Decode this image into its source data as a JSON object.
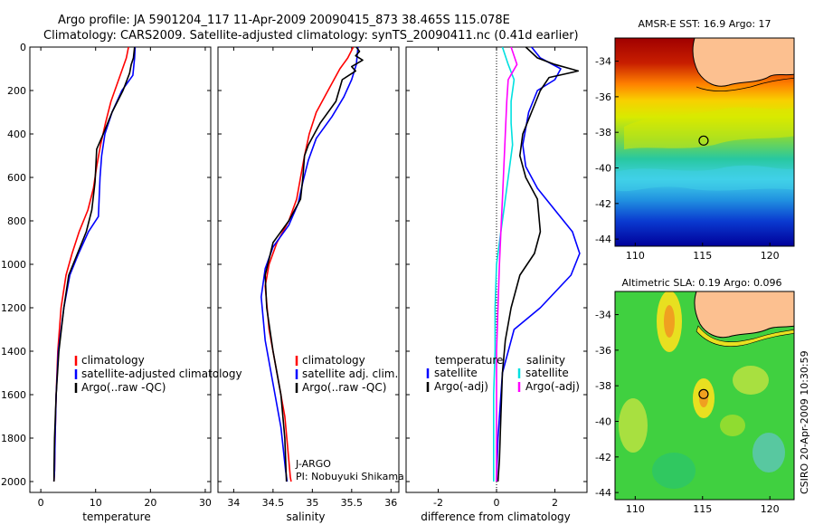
{
  "header": {
    "line1": "Argo profile: JA 5901204_117 11-Apr-2009 20090415_873 38.465S 115.078E",
    "line2": "Climatology: CARS2009. Satellite-adjusted climatology: synTS_20090411.nc (0.41d earlier)"
  },
  "side_stamp": "CSIRO 20-Apr-2009 10:30:59",
  "chart_data": [
    {
      "type": "line",
      "xlabel": "temperature",
      "ylabel": "",
      "xlim": [
        -2,
        31
      ],
      "ylim": [
        2050,
        0
      ],
      "xticks": [
        0,
        10,
        20,
        30
      ],
      "yticks": [
        0,
        200,
        400,
        600,
        800,
        1000,
        1200,
        1400,
        1600,
        1800,
        2000
      ],
      "legend": {
        "placement": "bottom-right",
        "entries": [
          "climatology",
          "satellite-adjusted climatology",
          "Argo(..raw -QC)"
        ]
      },
      "series": [
        {
          "name": "climatology",
          "color": "#ff0000",
          "x": [
            16.0,
            15.6,
            14.2,
            12.8,
            11.8,
            10.9,
            10.2,
            9.6,
            8.6,
            7.0,
            5.7,
            4.6,
            3.7,
            3.1,
            2.8,
            2.6,
            2.5,
            2.4
          ],
          "y": [
            0,
            50,
            150,
            250,
            350,
            450,
            550,
            650,
            750,
            850,
            950,
            1050,
            1200,
            1400,
            1600,
            1800,
            1950,
            2000
          ]
        },
        {
          "name": "satellite-adjusted climatology",
          "color": "#0000ff",
          "x": [
            17.2,
            17.1,
            16.8,
            14.8,
            13.0,
            11.7,
            11.1,
            10.8,
            10.5,
            8.7,
            6.9,
            5.3,
            4.2,
            3.2,
            2.8,
            2.6,
            2.5,
            2.4
          ],
          "y": [
            0,
            50,
            130,
            200,
            300,
            400,
            500,
            600,
            780,
            850,
            950,
            1050,
            1200,
            1400,
            1600,
            1800,
            1950,
            2000
          ]
        },
        {
          "name": "Argo(..raw -QC)",
          "color": "#000000",
          "x": [
            17.1,
            16.9,
            16.5,
            16.2,
            15.0,
            13.0,
            11.4,
            10.2,
            10.1,
            9.9,
            9.3,
            8.3,
            6.7,
            5.1,
            4.2,
            3.3,
            2.8,
            2.5,
            2.4,
            2.4
          ],
          "y": [
            0,
            50,
            80,
            120,
            200,
            300,
            400,
            470,
            520,
            620,
            750,
            850,
            950,
            1050,
            1200,
            1400,
            1600,
            1800,
            1950,
            2000
          ]
        }
      ]
    },
    {
      "type": "line",
      "xlabel": "salinity",
      "ylabel": "",
      "xlim": [
        33.8,
        36.1
      ],
      "ylim": [
        2050,
        0
      ],
      "xticks": [
        34,
        34.5,
        35,
        35.5,
        36
      ],
      "xticklabels": [
        "34",
        "34.5",
        "35",
        "35.5",
        "36"
      ],
      "yticks": [
        0,
        200,
        400,
        600,
        800,
        1000,
        1200,
        1400,
        1600,
        1800,
        2000
      ],
      "legend": {
        "placement": "bottom-right",
        "entries": [
          "climatology",
          "satellite adj. clim.",
          "Argo(..raw -QC)"
        ]
      },
      "annotations": [
        "J-ARGO",
        "PI: Nobuyuki Shikama"
      ],
      "series": [
        {
          "name": "climatology",
          "color": "#ff0000",
          "x": [
            35.52,
            35.45,
            35.35,
            35.2,
            35.05,
            34.96,
            34.9,
            34.85,
            34.8,
            34.7,
            34.55,
            34.45,
            34.4,
            34.45,
            34.55,
            34.65,
            34.7,
            34.72,
            34.73
          ],
          "y": [
            0,
            50,
            100,
            200,
            300,
            400,
            500,
            600,
            700,
            800,
            900,
            1000,
            1100,
            1300,
            1500,
            1700,
            1900,
            1980,
            2000
          ]
        },
        {
          "name": "satellite adj. clim.",
          "color": "#0000ff",
          "x": [
            35.58,
            35.56,
            35.5,
            35.4,
            35.25,
            35.05,
            34.95,
            34.88,
            34.82,
            34.7,
            34.5,
            34.4,
            34.35,
            34.4,
            34.5,
            34.6,
            34.66,
            34.68
          ],
          "y": [
            0,
            80,
            150,
            230,
            320,
            420,
            520,
            620,
            720,
            820,
            920,
            1020,
            1150,
            1350,
            1550,
            1750,
            1950,
            2000
          ]
        },
        {
          "name": "Argo(..raw -QC)",
          "color": "#000000",
          "x": [
            35.56,
            35.6,
            35.55,
            35.64,
            35.5,
            35.55,
            35.38,
            35.3,
            35.1,
            34.95,
            34.9,
            34.88,
            34.85,
            34.7,
            34.5,
            34.4,
            34.42,
            34.5,
            34.6,
            34.65,
            34.67
          ],
          "y": [
            0,
            20,
            40,
            60,
            90,
            110,
            150,
            250,
            350,
            450,
            500,
            600,
            700,
            800,
            900,
            1050,
            1200,
            1400,
            1600,
            1800,
            2000
          ]
        }
      ]
    },
    {
      "type": "line",
      "xlabel": "difference from climatology",
      "ylabel": "",
      "xlim": [
        -3.1,
        3.1
      ],
      "ylim": [
        2050,
        0
      ],
      "xticks": [
        -2,
        0,
        2
      ],
      "yticks": [
        0,
        200,
        400,
        600,
        800,
        1000,
        1200,
        1400,
        1600,
        1800,
        2000
      ],
      "legend": {
        "placement": "bottom",
        "groups": [
          "temperature",
          "salinity"
        ],
        "entries": [
          "satellite",
          "Argo(-adj)",
          "satellite",
          "Argo(-adj)"
        ]
      },
      "series": [
        {
          "name": "satellite",
          "group": "temperature",
          "color": "#0000ff",
          "x": [
            1.2,
            1.5,
            2.2,
            2.0,
            1.4,
            1.1,
            0.9,
            1.0,
            1.4,
            2.0,
            2.6,
            2.85,
            2.55,
            1.5,
            0.6,
            0.2,
            0.05,
            0.0
          ],
          "y": [
            0,
            50,
            100,
            150,
            200,
            300,
            450,
            550,
            650,
            750,
            850,
            950,
            1050,
            1200,
            1300,
            1500,
            1800,
            2000
          ]
        },
        {
          "name": "Argo(-adj)",
          "group": "temperature",
          "color": "#000000",
          "x": [
            1.0,
            1.4,
            2.0,
            2.8,
            1.8,
            1.5,
            1.2,
            0.9,
            0.8,
            1.0,
            1.4,
            1.5,
            1.3,
            0.8,
            0.5,
            0.3,
            0.2,
            0.15,
            0.1,
            0.05
          ],
          "y": [
            0,
            50,
            80,
            110,
            140,
            200,
            300,
            400,
            500,
            600,
            700,
            850,
            950,
            1050,
            1200,
            1350,
            1500,
            1700,
            1900,
            2000
          ]
        },
        {
          "name": "satellite",
          "group": "salinity",
          "color": "#00e0e0",
          "x": [
            0.2,
            0.4,
            0.6,
            0.5,
            0.5,
            0.55,
            0.45,
            0.35,
            0.25,
            0.15,
            0.0,
            -0.05,
            -0.05,
            -0.1,
            -0.1,
            -0.1
          ],
          "y": [
            0,
            80,
            150,
            250,
            350,
            450,
            550,
            650,
            750,
            850,
            1000,
            1200,
            1400,
            1600,
            1800,
            2000
          ]
        },
        {
          "name": "Argo(-adj)",
          "group": "salinity",
          "color": "#ff00ff",
          "x": [
            0.5,
            0.7,
            0.4,
            0.35,
            0.3,
            0.25,
            0.2,
            0.15,
            0.1,
            0.05,
            0.0,
            0.0,
            0.0,
            0.0
          ],
          "y": [
            0,
            80,
            150,
            250,
            400,
            550,
            700,
            850,
            1000,
            1200,
            1400,
            1600,
            1800,
            2000
          ]
        }
      ]
    },
    {
      "type": "heatmap",
      "title": "AMSR-E SST: 16.9 Argo: 17",
      "xlim": [
        108.5,
        121.8
      ],
      "ylim": [
        -44.4,
        -32.7
      ],
      "xticks": [
        110,
        115,
        120
      ],
      "yticks": [
        -34,
        -36,
        -38,
        -40,
        -42,
        -44
      ],
      "marker": {
        "lon": 115.078,
        "lat": -38.465
      }
    },
    {
      "type": "heatmap",
      "title": "Altimetric SLA: 0.19 Argo: 0.096",
      "xlim": [
        108.5,
        121.8
      ],
      "ylim": [
        -44.4,
        -32.7
      ],
      "xticks": [
        110,
        115,
        120
      ],
      "yticks": [
        -34,
        -36,
        -38,
        -40,
        -42,
        -44
      ],
      "marker": {
        "lon": 115.078,
        "lat": -38.465
      }
    }
  ]
}
